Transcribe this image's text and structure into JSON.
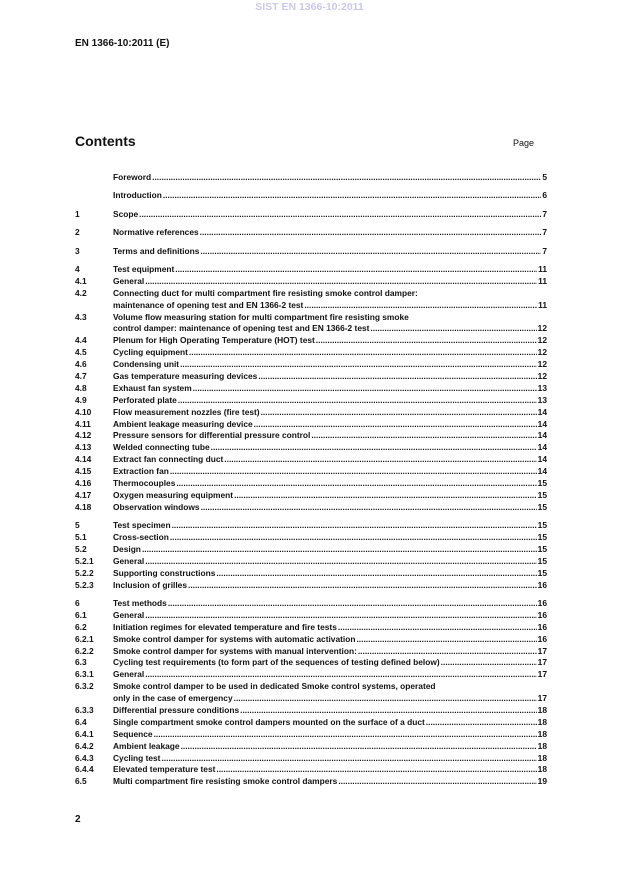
{
  "watermark": "SIST EN 1366-10:2011",
  "header": {
    "doc_id": "EN 1366-10:2011 (E)"
  },
  "contents": {
    "title": "Contents",
    "page_label": "Page"
  },
  "toc_groups": [
    [
      {
        "num": "",
        "title": "Foreword",
        "page": "5"
      }
    ],
    [
      {
        "num": "",
        "title": "Introduction",
        "page": "6"
      }
    ],
    [
      {
        "num": "1",
        "title": "Scope",
        "page": "7"
      }
    ],
    [
      {
        "num": "2",
        "title": "Normative references",
        "page": "7"
      }
    ],
    [
      {
        "num": "3",
        "title": "Terms and definitions",
        "page": "7"
      }
    ],
    [
      {
        "num": "4",
        "title": "Test equipment",
        "page": "11"
      },
      {
        "num": "4.1",
        "title": "General",
        "page": "11"
      },
      {
        "num": "4.2",
        "title": "Connecting duct for multi compartment fire resisting smoke control damper:",
        "title_cont": "maintenance of opening test and EN 1366-2 test",
        "page": "11"
      },
      {
        "num": "4.3",
        "title": "Volume flow measuring station for multi compartment fire resisting smoke",
        "title_cont": "control damper: maintenance of opening test and EN 1366-2 test",
        "page": "12"
      },
      {
        "num": "4.4",
        "title": "Plenum for High Operating Temperature (HOT) test",
        "page": "12"
      },
      {
        "num": "4.5",
        "title": "Cycling equipment",
        "page": "12"
      },
      {
        "num": "4.6",
        "title": "Condensing unit",
        "page": "12"
      },
      {
        "num": "4.7",
        "title": "Gas temperature measuring devices",
        "page": "12"
      },
      {
        "num": "4.8",
        "title": "Exhaust fan system",
        "page": "13"
      },
      {
        "num": "4.9",
        "title": "Perforated plate",
        "page": "13"
      },
      {
        "num": "4.10",
        "title": "Flow measurement nozzles (fire test)",
        "page": "14"
      },
      {
        "num": "4.11",
        "title": "Ambient leakage measuring device",
        "page": "14"
      },
      {
        "num": "4.12",
        "title": "Pressure sensors for differential pressure control",
        "page": "14"
      },
      {
        "num": "4.13",
        "title": "Welded connecting tube",
        "page": "14"
      },
      {
        "num": "4.14",
        "title": "Extract fan connecting duct",
        "page": "14"
      },
      {
        "num": "4.15",
        "title": "Extraction fan",
        "page": "14"
      },
      {
        "num": "4.16",
        "title": "Thermocouples",
        "page": "15"
      },
      {
        "num": "4.17",
        "title": "Oxygen measuring equipment",
        "page": "15"
      },
      {
        "num": "4.18",
        "title": "Observation windows",
        "page": "15"
      }
    ],
    [
      {
        "num": "5",
        "title": "Test specimen",
        "page": "15"
      },
      {
        "num": "5.1",
        "title": "Cross-section",
        "page": "15"
      },
      {
        "num": "5.2",
        "title": "Design",
        "page": "15"
      },
      {
        "num": "5.2.1",
        "title": "General",
        "page": "15"
      },
      {
        "num": "5.2.2",
        "title": "Supporting constructions",
        "page": "15"
      },
      {
        "num": "5.2.3",
        "title": "Inclusion of grilles",
        "page": "16"
      }
    ],
    [
      {
        "num": "6",
        "title": "Test methods",
        "page": "16"
      },
      {
        "num": "6.1",
        "title": "General",
        "page": "16"
      },
      {
        "num": "6.2",
        "title": "Initiation regimes for elevated temperature and fire tests",
        "page": "16"
      },
      {
        "num": "6.2.1",
        "title": "Smoke control damper for systems with automatic activation",
        "page": "16"
      },
      {
        "num": "6.2.2",
        "title": "Smoke control damper for systems with manual intervention:",
        "page": "17"
      },
      {
        "num": "6.3",
        "title": "Cycling test requirements (to form part of the sequences of testing defined below)",
        "page": "17"
      },
      {
        "num": "6.3.1",
        "title": "General",
        "page": "17"
      },
      {
        "num": "6.3.2",
        "title": "Smoke control damper to be used in dedicated Smoke control systems, operated",
        "title_cont": "only in the case of emergency",
        "page": "17"
      },
      {
        "num": "6.3.3",
        "title": "Differential pressure conditions",
        "page": "18"
      },
      {
        "num": "6.4",
        "title": "Single compartment smoke control dampers mounted on the surface of a duct",
        "page": "18"
      },
      {
        "num": "6.4.1",
        "title": "Sequence",
        "page": "18"
      },
      {
        "num": "6.4.2",
        "title": "Ambient leakage",
        "page": "18"
      },
      {
        "num": "6.4.3",
        "title": "Cycling test",
        "page": "18"
      },
      {
        "num": "6.4.4",
        "title": "Elevated temperature test",
        "page": "18"
      },
      {
        "num": "6.5",
        "title": "Multi compartment fire resisting smoke control dampers",
        "page": "19"
      }
    ]
  ],
  "footer": {
    "page_number": "2"
  }
}
